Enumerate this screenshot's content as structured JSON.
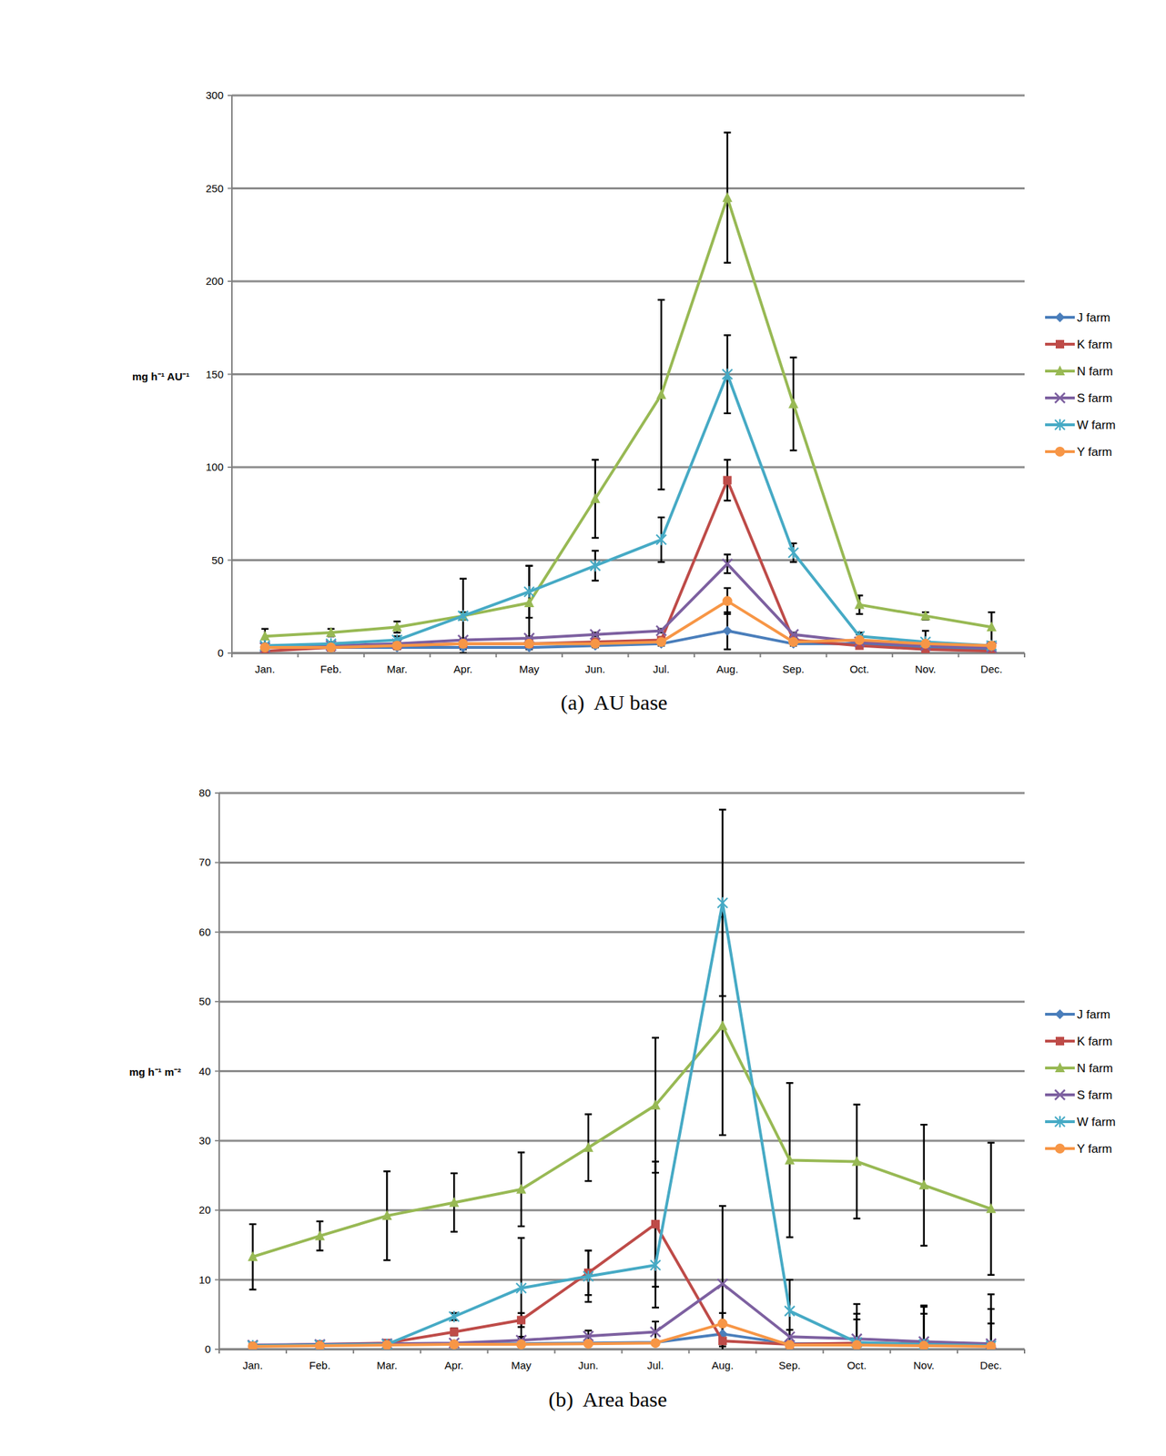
{
  "chart_data": [
    {
      "type": "line",
      "title": "(a)  AU base",
      "y_label": "mg h⁻¹ AU⁻¹",
      "categories": [
        "Jan.",
        "Feb.",
        "Mar.",
        "Apr.",
        "May",
        "Jun.",
        "Jul.",
        "Aug.",
        "Sep.",
        "Oct.",
        "Nov.",
        "Dec."
      ],
      "ylim": [
        0,
        300
      ],
      "yticks": [
        0,
        50,
        100,
        150,
        200,
        250,
        300
      ],
      "grid": true,
      "legend": "right",
      "series": [
        {
          "name": "J farm",
          "color": "#4a7ebb",
          "marker": "diamond",
          "values": [
            3,
            3,
            3,
            3,
            3,
            4,
            5,
            12,
            5,
            5,
            3,
            2
          ],
          "errors": [
            1,
            1,
            1,
            1,
            1,
            1,
            1,
            10,
            1,
            1,
            1,
            1
          ]
        },
        {
          "name": "K farm",
          "color": "#be4b48",
          "marker": "square",
          "values": [
            1,
            3,
            4,
            5,
            5,
            6,
            7,
            93,
            7,
            4,
            2,
            1
          ],
          "errors": [
            1,
            1,
            1,
            1,
            1,
            1,
            1,
            11,
            1,
            1,
            1,
            1
          ]
        },
        {
          "name": "N farm",
          "color": "#98b954",
          "marker": "triangle",
          "values": [
            9,
            11,
            14,
            20,
            27,
            83,
            139,
            245,
            134,
            26,
            20,
            14
          ],
          "errors": [
            4,
            2,
            3,
            2,
            20,
            21,
            51,
            35,
            25,
            5,
            2,
            8
          ]
        },
        {
          "name": "S farm",
          "color": "#7d60a0",
          "marker": "x",
          "values": [
            3,
            4,
            5,
            7,
            8,
            10,
            12,
            48,
            10,
            6,
            4,
            3
          ],
          "errors": [
            1,
            1,
            1,
            1,
            1,
            1,
            1,
            5,
            1,
            1,
            1,
            1
          ]
        },
        {
          "name": "W farm",
          "color": "#46aac5",
          "marker": "star",
          "values": [
            4,
            5,
            7,
            20,
            33,
            47,
            61,
            150,
            54,
            9,
            6,
            4
          ],
          "errors": [
            1,
            1,
            2,
            20,
            14,
            8,
            12,
            21,
            5,
            2,
            6,
            1
          ]
        },
        {
          "name": "Y farm",
          "color": "#f79646",
          "marker": "circle",
          "values": [
            3,
            3,
            4,
            5,
            5,
            5,
            6,
            28,
            6,
            7,
            5,
            4
          ],
          "errors": [
            1,
            1,
            1,
            1,
            1,
            1,
            1,
            7,
            1,
            3,
            1,
            1
          ]
        }
      ]
    },
    {
      "type": "line",
      "title": "(b)  Area base",
      "y_label": "mg h⁻¹ m⁻²",
      "categories": [
        "Jan.",
        "Feb.",
        "Mar.",
        "Apr.",
        "May",
        "Jun.",
        "Jul.",
        "Aug.",
        "Sep.",
        "Oct.",
        "Nov.",
        "Dec."
      ],
      "ylim": [
        0,
        80
      ],
      "yticks": [
        0,
        10,
        20,
        30,
        40,
        50,
        60,
        70,
        80
      ],
      "grid": true,
      "legend": "right",
      "series": [
        {
          "name": "J farm",
          "color": "#4a7ebb",
          "marker": "diamond",
          "values": [
            0.5,
            0.6,
            0.7,
            0.8,
            0.8,
            0.9,
            1.0,
            2.2,
            0.8,
            0.8,
            0.6,
            0.5
          ],
          "errors": [
            0.2,
            0.2,
            0.2,
            0.2,
            0.2,
            0.2,
            0.3,
            1.5,
            0.3,
            3.5,
            4.5,
            3.2
          ]
        },
        {
          "name": "K farm",
          "color": "#be4b48",
          "marker": "square",
          "values": [
            0.5,
            0.7,
            0.9,
            2.5,
            4.2,
            11,
            18,
            1.2,
            0.7,
            0.9,
            0.8,
            0.6
          ],
          "errors": [
            0.2,
            0.2,
            0.3,
            0.5,
            1.0,
            3.2,
            9,
            0.8,
            0.3,
            4.2,
            5.5,
            7.3
          ]
        },
        {
          "name": "N farm",
          "color": "#98b954",
          "marker": "triangle",
          "values": [
            13.3,
            16.3,
            19.2,
            21.1,
            23,
            29,
            35.1,
            46.5,
            27.2,
            27,
            23.6,
            20.2
          ],
          "errors": [
            4.7,
            2.1,
            6.4,
            4.2,
            5.3,
            4.8,
            9.7,
            15.7,
            11.1,
            8.2,
            8.7,
            9.5
          ]
        },
        {
          "name": "S farm",
          "color": "#7d60a0",
          "marker": "x",
          "values": [
            0.6,
            0.7,
            0.8,
            0.9,
            1.3,
            1.9,
            2.5,
            9.4,
            1.8,
            1.5,
            1.1,
            0.8
          ],
          "errors": [
            0.2,
            0.2,
            0.2,
            0.3,
            0.5,
            0.8,
            1.5,
            11.2,
            1.0,
            5.0,
            5.0,
            5.0
          ]
        },
        {
          "name": "W farm",
          "color": "#46aac5",
          "marker": "star",
          "values": [
            0.5,
            0.6,
            0.7,
            4.7,
            8.8,
            10.5,
            12.1,
            64.2,
            5.5,
            1.0,
            0.7,
            0.5
          ],
          "errors": [
            0.2,
            0.2,
            0.2,
            0.5,
            7.2,
            3.7,
            6.1,
            13.4,
            4.5,
            0.5,
            0.3,
            0.2
          ]
        },
        {
          "name": "Y farm",
          "color": "#f79646",
          "marker": "circle",
          "values": [
            0.4,
            0.5,
            0.6,
            0.7,
            0.7,
            0.8,
            0.9,
            3.7,
            0.6,
            0.6,
            0.5,
            0.4
          ],
          "errors": [
            0.1,
            0.1,
            0.1,
            0.2,
            0.2,
            0.2,
            0.3,
            1.5,
            0.3,
            0.3,
            0.2,
            0.2
          ]
        }
      ]
    }
  ]
}
